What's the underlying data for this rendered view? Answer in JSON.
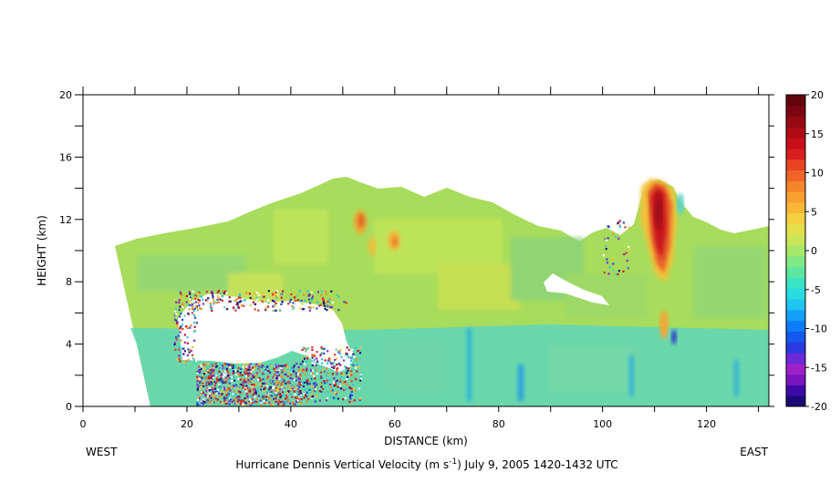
{
  "chart_data": {
    "type": "heatmap",
    "title": "Hurricane Dennis Vertical Velocity (m s^-1) July 9, 2005 1420-1432 UTC",
    "title_parts": {
      "prefix": "Hurricane Dennis Vertical Velocity (m s",
      "superscript": "-1",
      "suffix": ") July 9, 2005 1420-1432 UTC"
    },
    "xlabel": "DISTANCE (km)",
    "ylabel": "HEIGHT (km)",
    "xlim": [
      0,
      132
    ],
    "ylim": [
      0,
      20
    ],
    "x_ticks": [
      0,
      20,
      40,
      60,
      80,
      100,
      120
    ],
    "y_ticks": [
      0,
      4,
      8,
      12,
      16,
      20
    ],
    "left_annotation": "WEST",
    "right_annotation": "EAST",
    "colorbar": {
      "range": [
        -20,
        20
      ],
      "ticks": [
        20,
        15,
        10,
        5,
        0,
        -5,
        -10,
        -15,
        -20
      ],
      "colors": [
        "#ffffff"
      ]
    },
    "grid": false,
    "features": [
      {
        "label": "convective updraft core",
        "x": [
          107,
          114
        ],
        "y": [
          6,
          14.5
        ],
        "max_value": 20
      },
      {
        "label": "updraft",
        "x": [
          52,
          55
        ],
        "y": [
          11,
          12.5
        ],
        "max_value": 12
      },
      {
        "label": "updraft",
        "x": [
          58,
          61
        ],
        "y": [
          10,
          11.5
        ],
        "max_value": 10
      },
      {
        "label": "downdraft",
        "x": [
          112,
          115
        ],
        "y": [
          4,
          5
        ],
        "min_value": -12
      },
      {
        "label": "no-data region",
        "x": [
          20,
          50
        ],
        "y": [
          4,
          7.5
        ]
      }
    ]
  }
}
